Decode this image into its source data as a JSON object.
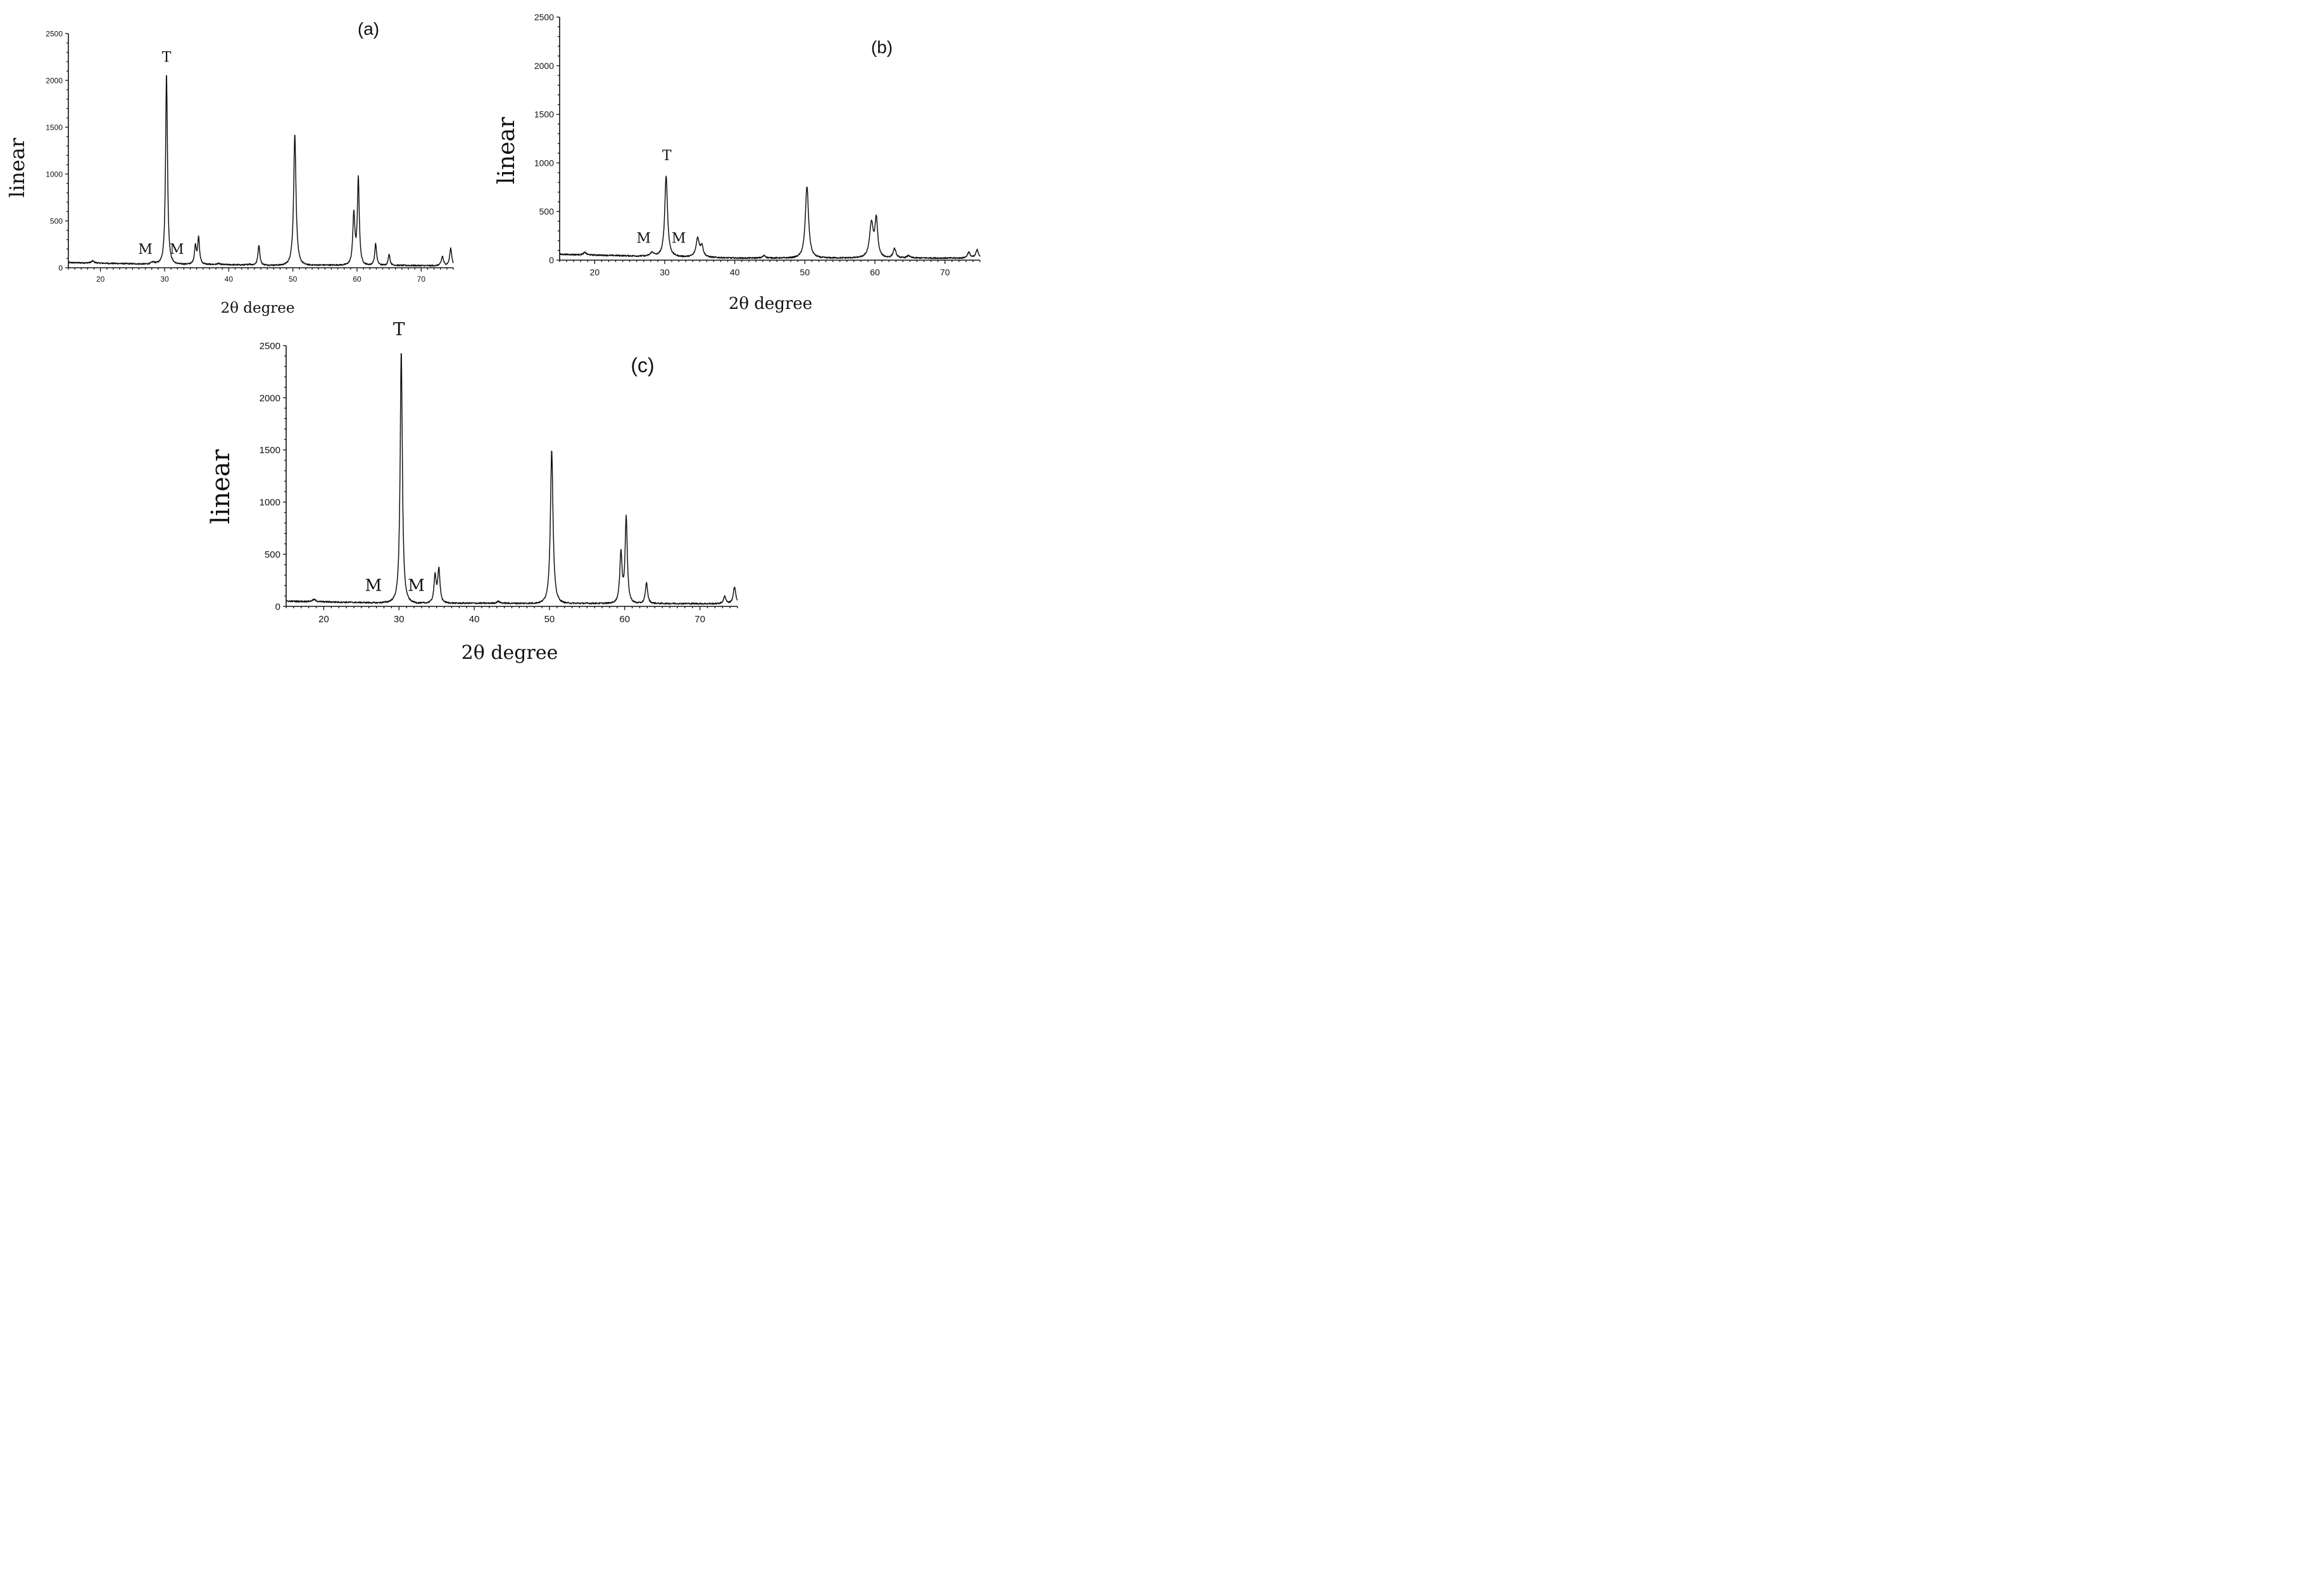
{
  "chart_data": [
    {
      "panel": "(a)",
      "type": "line",
      "xlabel": "2θ degree",
      "ylabel": "linear",
      "xlim": [
        15,
        75
      ],
      "ylim": [
        0,
        2500
      ],
      "xticks": [
        20,
        30,
        40,
        50,
        60,
        70
      ],
      "yticks": [
        0,
        500,
        1000,
        1500,
        2000,
        2500
      ],
      "grid": false,
      "baseline": [
        [
          15,
          55
        ],
        [
          27,
          40
        ],
        [
          29,
          45
        ],
        [
          33,
          40
        ],
        [
          45,
          28
        ],
        [
          60,
          30
        ],
        [
          75,
          20
        ]
      ],
      "peaks": [
        {
          "x": 18.8,
          "y": 22,
          "w": 0.35
        },
        {
          "x": 28.2,
          "y": 20,
          "w": 0.4
        },
        {
          "x": 30.3,
          "y": 2030,
          "w": 0.22
        },
        {
          "x": 34.8,
          "y": 190,
          "w": 0.22
        },
        {
          "x": 35.3,
          "y": 280,
          "w": 0.22
        },
        {
          "x": 38.4,
          "y": 12,
          "w": 0.3
        },
        {
          "x": 43.2,
          "y": 10,
          "w": 0.3
        },
        {
          "x": 44.7,
          "y": 215,
          "w": 0.22
        },
        {
          "x": 50.3,
          "y": 1395,
          "w": 0.28
        },
        {
          "x": 59.5,
          "y": 540,
          "w": 0.25
        },
        {
          "x": 60.2,
          "y": 925,
          "w": 0.22
        },
        {
          "x": 62.9,
          "y": 230,
          "w": 0.22
        },
        {
          "x": 65.0,
          "y": 120,
          "w": 0.2
        },
        {
          "x": 73.3,
          "y": 100,
          "w": 0.25
        },
        {
          "x": 74.6,
          "y": 185,
          "w": 0.25
        }
      ],
      "annotations": [
        {
          "text": "T",
          "x": 30.3,
          "y": 2200
        },
        {
          "text": "M",
          "x": 27.0,
          "y": 150
        },
        {
          "text": "M",
          "x": 31.9,
          "y": 150
        }
      ]
    },
    {
      "panel": "(b)",
      "type": "line",
      "xlabel": "2θ degree",
      "ylabel": "linear",
      "xlim": [
        15,
        75
      ],
      "ylim": [
        0,
        2500
      ],
      "xticks": [
        20,
        30,
        40,
        50,
        60,
        70
      ],
      "yticks": [
        0,
        500,
        1000,
        1500,
        2000,
        2500
      ],
      "grid": false,
      "baseline": [
        [
          15,
          60
        ],
        [
          27,
          42
        ],
        [
          31,
          40
        ],
        [
          40,
          22
        ],
        [
          60,
          25
        ],
        [
          75,
          20
        ]
      ],
      "peaks": [
        {
          "x": 18.6,
          "y": 25,
          "w": 0.3
        },
        {
          "x": 28.2,
          "y": 40,
          "w": 0.4
        },
        {
          "x": 30.2,
          "y": 825,
          "w": 0.3
        },
        {
          "x": 34.7,
          "y": 190,
          "w": 0.35
        },
        {
          "x": 35.3,
          "y": 110,
          "w": 0.3
        },
        {
          "x": 44.2,
          "y": 25,
          "w": 0.3
        },
        {
          "x": 50.3,
          "y": 735,
          "w": 0.35
        },
        {
          "x": 59.5,
          "y": 350,
          "w": 0.4
        },
        {
          "x": 60.2,
          "y": 380,
          "w": 0.3
        },
        {
          "x": 62.8,
          "y": 95,
          "w": 0.3
        },
        {
          "x": 64.8,
          "y": 25,
          "w": 0.3
        },
        {
          "x": 73.4,
          "y": 60,
          "w": 0.3
        },
        {
          "x": 74.6,
          "y": 85,
          "w": 0.3
        }
      ],
      "annotations": [
        {
          "text": "T",
          "x": 30.3,
          "y": 1030
        },
        {
          "text": "M",
          "x": 27.0,
          "y": 180
        },
        {
          "text": "M",
          "x": 32.0,
          "y": 180
        }
      ]
    },
    {
      "panel": "(c)",
      "type": "line",
      "xlabel": "2θ degree",
      "ylabel": "linear",
      "xlim": [
        15,
        75
      ],
      "ylim": [
        0,
        2500
      ],
      "xticks": [
        20,
        30,
        40,
        50,
        60,
        70
      ],
      "yticks": [
        0,
        500,
        1000,
        1500,
        2000,
        2500
      ],
      "grid": false,
      "baseline": [
        [
          15,
          50
        ],
        [
          27,
          35
        ],
        [
          29,
          42
        ],
        [
          33,
          32
        ],
        [
          45,
          30
        ],
        [
          60,
          30
        ],
        [
          75,
          25
        ]
      ],
      "peaks": [
        {
          "x": 18.7,
          "y": 20,
          "w": 0.35
        },
        {
          "x": 30.3,
          "y": 2410,
          "w": 0.22
        },
        {
          "x": 34.8,
          "y": 260,
          "w": 0.22
        },
        {
          "x": 35.3,
          "y": 320,
          "w": 0.22
        },
        {
          "x": 43.2,
          "y": 18,
          "w": 0.3
        },
        {
          "x": 50.3,
          "y": 1470,
          "w": 0.26
        },
        {
          "x": 59.5,
          "y": 480,
          "w": 0.23
        },
        {
          "x": 60.2,
          "y": 820,
          "w": 0.22
        },
        {
          "x": 62.9,
          "y": 200,
          "w": 0.22
        },
        {
          "x": 73.3,
          "y": 70,
          "w": 0.25
        },
        {
          "x": 74.6,
          "y": 160,
          "w": 0.25
        }
      ],
      "annotations": [
        {
          "text": "T",
          "x": 30.0,
          "y": 2600
        },
        {
          "text": "M",
          "x": 26.6,
          "y": 150
        },
        {
          "text": "M",
          "x": 32.3,
          "y": 150
        }
      ]
    }
  ]
}
